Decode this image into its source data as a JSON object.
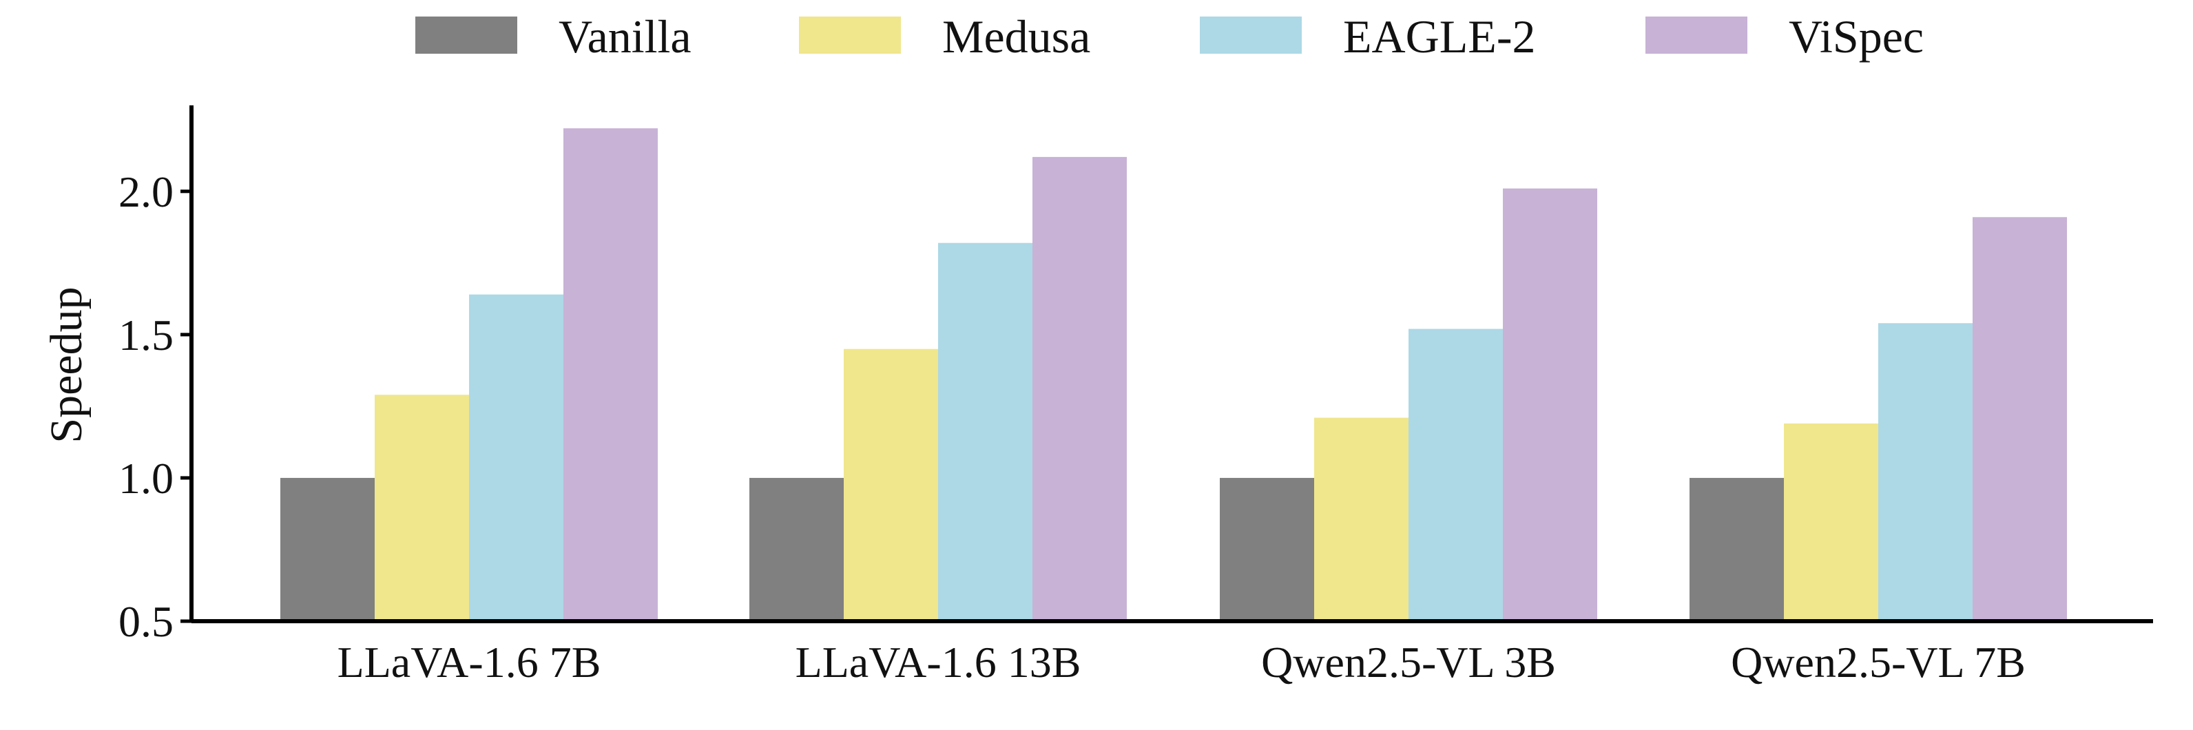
{
  "chart_data": {
    "type": "bar",
    "title": "",
    "xlabel": "",
    "ylabel": "Speedup",
    "ylim": [
      0.5,
      2.3
    ],
    "yticks": [
      "0.5",
      "1.0",
      "1.5",
      "2.0"
    ],
    "categories": [
      "LLaVA-1.6 7B",
      "LLaVA-1.6 13B",
      "Qwen2.5-VL 3B",
      "Qwen2.5-VL 7B"
    ],
    "series": [
      {
        "name": "Vanilla",
        "color": "#808080",
        "values": [
          1.0,
          1.0,
          1.0,
          1.0
        ]
      },
      {
        "name": "Medusa",
        "color": "#F0E68C",
        "values": [
          1.29,
          1.45,
          1.21,
          1.19
        ]
      },
      {
        "name": "EAGLE-2",
        "color": "#ADD8E6",
        "values": [
          1.64,
          1.82,
          1.52,
          1.54
        ]
      },
      {
        "name": "ViSpec",
        "color": "#C8B2D6",
        "values": [
          2.22,
          2.12,
          2.01,
          1.91
        ]
      }
    ],
    "legend_position": "top-center",
    "grid": false
  }
}
